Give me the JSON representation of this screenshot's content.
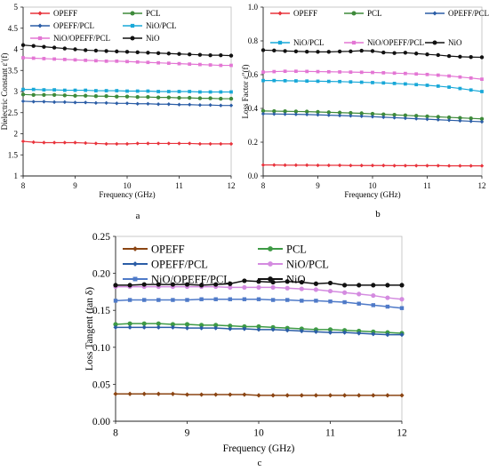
{
  "figure": {
    "panel_labels": [
      "a",
      "b",
      "c"
    ]
  },
  "chart_data": [
    {
      "type": "line",
      "xlabel": "Frequency (GHz)",
      "ylabel": "Dielectric Constant ε′(f)",
      "xlim": [
        8,
        12
      ],
      "ylim": [
        1,
        5
      ],
      "x_ticks": [
        8,
        9,
        10,
        11,
        12
      ],
      "y_ticks": [
        1,
        1.5,
        2,
        2.5,
        3,
        3.5,
        4,
        4.5,
        5
      ],
      "grid": false,
      "legend_placement": "top",
      "x": [
        8.0,
        8.2,
        8.4,
        8.6,
        8.8,
        9.0,
        9.2,
        9.4,
        9.6,
        9.8,
        10.0,
        10.2,
        10.4,
        10.6,
        10.8,
        11.0,
        11.2,
        11.4,
        11.6,
        11.8,
        12.0
      ],
      "series": [
        {
          "name": "OPEFF",
          "color": "#e8333c",
          "marker": "diamond",
          "values": [
            1.82,
            1.8,
            1.79,
            1.79,
            1.79,
            1.79,
            1.78,
            1.77,
            1.76,
            1.76,
            1.76,
            1.77,
            1.77,
            1.77,
            1.77,
            1.77,
            1.77,
            1.76,
            1.76,
            1.76,
            1.76
          ]
        },
        {
          "name": "PCL",
          "color": "#3e8a3a",
          "marker": "circle",
          "values": [
            2.93,
            2.92,
            2.92,
            2.92,
            2.91,
            2.9,
            2.9,
            2.89,
            2.89,
            2.88,
            2.88,
            2.87,
            2.87,
            2.86,
            2.86,
            2.85,
            2.85,
            2.84,
            2.84,
            2.83,
            2.83
          ]
        },
        {
          "name": "OPEFF/PCL",
          "color": "#2b5da6",
          "marker": "diamond",
          "values": [
            2.77,
            2.76,
            2.76,
            2.75,
            2.75,
            2.74,
            2.74,
            2.73,
            2.73,
            2.72,
            2.72,
            2.71,
            2.71,
            2.7,
            2.7,
            2.69,
            2.69,
            2.68,
            2.68,
            2.67,
            2.67
          ]
        },
        {
          "name": "NiO/PCL",
          "color": "#18a8d8",
          "marker": "square",
          "values": [
            3.05,
            3.05,
            3.04,
            3.04,
            3.03,
            3.03,
            3.03,
            3.02,
            3.02,
            3.02,
            3.01,
            3.01,
            3.01,
            3.0,
            3.0,
            3.0,
            3.0,
            2.99,
            2.99,
            2.99,
            2.99
          ]
        },
        {
          "name": "NiO/OPEFF/PCL",
          "color": "#e376d4",
          "marker": "square",
          "values": [
            3.8,
            3.79,
            3.78,
            3.77,
            3.76,
            3.75,
            3.74,
            3.73,
            3.72,
            3.72,
            3.71,
            3.7,
            3.69,
            3.68,
            3.67,
            3.66,
            3.65,
            3.64,
            3.63,
            3.62,
            3.62
          ]
        },
        {
          "name": "NiO",
          "color": "#111111",
          "marker": "circle",
          "values": [
            4.1,
            4.08,
            4.06,
            4.04,
            4.02,
            4.0,
            3.98,
            3.97,
            3.96,
            3.95,
            3.94,
            3.93,
            3.92,
            3.91,
            3.9,
            3.89,
            3.88,
            3.87,
            3.86,
            3.86,
            3.85
          ]
        }
      ]
    },
    {
      "type": "line",
      "xlabel": "Frequency (GHz)",
      "ylabel": "Loss Factor ε″(f)",
      "xlim": [
        8,
        12
      ],
      "ylim": [
        0,
        1.0
      ],
      "x_ticks": [
        8,
        9,
        10,
        11,
        12
      ],
      "y_ticks": [
        0,
        0.2,
        0.4,
        0.6,
        0.8,
        1.0
      ],
      "grid": false,
      "legend_placement": "top",
      "x": [
        8.0,
        8.2,
        8.4,
        8.6,
        8.8,
        9.0,
        9.2,
        9.4,
        9.6,
        9.8,
        10.0,
        10.2,
        10.4,
        10.6,
        10.8,
        11.0,
        11.2,
        11.4,
        11.6,
        11.8,
        12.0
      ],
      "series": [
        {
          "name": "OPEFF",
          "color": "#e8333c",
          "marker": "diamond",
          "values": [
            0.065,
            0.065,
            0.064,
            0.064,
            0.064,
            0.063,
            0.063,
            0.063,
            0.062,
            0.062,
            0.062,
            0.062,
            0.061,
            0.061,
            0.061,
            0.061,
            0.061,
            0.06,
            0.06,
            0.06,
            0.06
          ]
        },
        {
          "name": "PCL",
          "color": "#3e8a3a",
          "marker": "circle",
          "values": [
            0.385,
            0.384,
            0.383,
            0.382,
            0.381,
            0.379,
            0.377,
            0.375,
            0.373,
            0.371,
            0.368,
            0.365,
            0.362,
            0.359,
            0.356,
            0.353,
            0.35,
            0.347,
            0.344,
            0.341,
            0.338
          ]
        },
        {
          "name": "OPEFF/PCL",
          "color": "#2b5da6",
          "marker": "diamond",
          "values": [
            0.368,
            0.367,
            0.366,
            0.365,
            0.364,
            0.362,
            0.36,
            0.358,
            0.356,
            0.354,
            0.351,
            0.348,
            0.345,
            0.342,
            0.339,
            0.336,
            0.333,
            0.33,
            0.327,
            0.324,
            0.321
          ]
        },
        {
          "name": "NiO/PCL",
          "color": "#18a8d8",
          "marker": "square",
          "values": [
            0.565,
            0.565,
            0.564,
            0.563,
            0.562,
            0.561,
            0.56,
            0.559,
            0.557,
            0.555,
            0.553,
            0.551,
            0.548,
            0.545,
            0.541,
            0.537,
            0.532,
            0.526,
            0.518,
            0.509,
            0.5
          ]
        },
        {
          "name": "NiO/OPEFF/PCL",
          "color": "#e376d4",
          "marker": "square",
          "values": [
            0.615,
            0.618,
            0.62,
            0.62,
            0.619,
            0.618,
            0.617,
            0.616,
            0.615,
            0.614,
            0.613,
            0.611,
            0.609,
            0.607,
            0.604,
            0.601,
            0.597,
            0.592,
            0.586,
            0.58,
            0.573
          ]
        },
        {
          "name": "NiO",
          "color": "#111111",
          "marker": "circle",
          "values": [
            0.745,
            0.743,
            0.74,
            0.738,
            0.736,
            0.735,
            0.735,
            0.737,
            0.738,
            0.742,
            0.74,
            0.731,
            0.728,
            0.73,
            0.725,
            0.72,
            0.716,
            0.71,
            0.706,
            0.704,
            0.703
          ]
        }
      ]
    },
    {
      "type": "line",
      "xlabel": "Frequency (GHz)",
      "ylabel": "Loss Tangent (tan δ)",
      "xlim": [
        8,
        12
      ],
      "ylim": [
        0,
        0.25
      ],
      "x_ticks": [
        8,
        9,
        10,
        11,
        12
      ],
      "y_ticks": [
        0.0,
        0.05,
        0.1,
        0.15,
        0.2,
        0.25
      ],
      "grid": false,
      "legend_placement": "top",
      "x": [
        8.0,
        8.2,
        8.4,
        8.6,
        8.8,
        9.0,
        9.2,
        9.4,
        9.6,
        9.8,
        10.0,
        10.2,
        10.4,
        10.6,
        10.8,
        11.0,
        11.2,
        11.4,
        11.6,
        11.8,
        12.0
      ],
      "series": [
        {
          "name": "OPEFF",
          "color": "#8b4513",
          "marker": "diamond",
          "values": [
            0.037,
            0.037,
            0.037,
            0.037,
            0.037,
            0.036,
            0.036,
            0.036,
            0.036,
            0.036,
            0.035,
            0.035,
            0.035,
            0.035,
            0.035,
            0.035,
            0.035,
            0.035,
            0.035,
            0.035,
            0.035
          ]
        },
        {
          "name": "PCL",
          "color": "#3e9a45",
          "marker": "circle",
          "values": [
            0.131,
            0.132,
            0.132,
            0.132,
            0.131,
            0.131,
            0.13,
            0.13,
            0.129,
            0.128,
            0.128,
            0.127,
            0.126,
            0.125,
            0.124,
            0.124,
            0.123,
            0.122,
            0.121,
            0.12,
            0.119
          ]
        },
        {
          "name": "OPEFF/PCL",
          "color": "#2b5da6",
          "marker": "diamond",
          "values": [
            0.127,
            0.127,
            0.127,
            0.127,
            0.127,
            0.126,
            0.126,
            0.126,
            0.125,
            0.125,
            0.124,
            0.124,
            0.123,
            0.122,
            0.121,
            0.12,
            0.12,
            0.119,
            0.118,
            0.117,
            0.117
          ]
        },
        {
          "name": "NiO/PCL",
          "color": "#d48be0",
          "marker": "circle",
          "values": [
            0.182,
            0.182,
            0.182,
            0.182,
            0.182,
            0.182,
            0.182,
            0.182,
            0.181,
            0.181,
            0.181,
            0.181,
            0.18,
            0.179,
            0.178,
            0.176,
            0.174,
            0.172,
            0.17,
            0.167,
            0.165
          ]
        },
        {
          "name": "NiO/OPEFF/PCL",
          "color": "#4f7ac8",
          "marker": "square",
          "values": [
            0.163,
            0.164,
            0.164,
            0.164,
            0.164,
            0.164,
            0.165,
            0.165,
            0.165,
            0.165,
            0.165,
            0.164,
            0.164,
            0.163,
            0.163,
            0.162,
            0.161,
            0.159,
            0.157,
            0.155,
            0.153
          ]
        },
        {
          "name": "NiO",
          "color": "#111111",
          "marker": "circle",
          "values": [
            0.184,
            0.184,
            0.185,
            0.185,
            0.185,
            0.185,
            0.184,
            0.185,
            0.186,
            0.19,
            0.189,
            0.188,
            0.189,
            0.188,
            0.186,
            0.187,
            0.184,
            0.184,
            0.184,
            0.184,
            0.184
          ]
        }
      ]
    }
  ]
}
